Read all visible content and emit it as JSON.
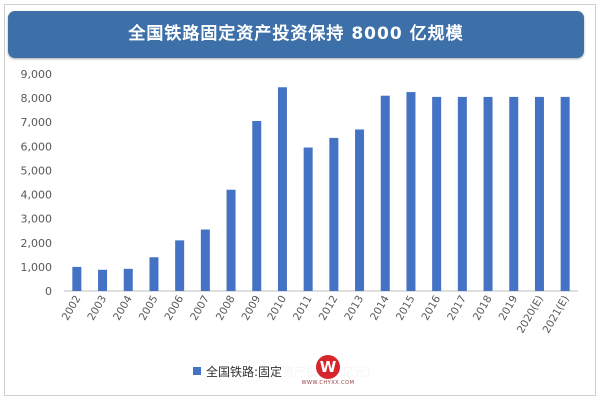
{
  "chart_data": {
    "type": "bar",
    "title": "全国铁路固定资产投资保持 8000 亿规模",
    "categories": [
      "2002",
      "2003",
      "2004",
      "2005",
      "2006",
      "2007",
      "2008",
      "2009",
      "2010",
      "2011",
      "2012",
      "2013",
      "2014",
      "2015",
      "2016",
      "2017",
      "2018",
      "2019",
      "2020(E)",
      "2021(E)"
    ],
    "series": [
      {
        "name": "全国铁路:固定资产投资（亿元）",
        "values": [
          1000,
          880,
          920,
          1400,
          2100,
          2550,
          4200,
          7050,
          8450,
          5950,
          6350,
          6700,
          8100,
          8250,
          8050,
          8050,
          8050,
          8050,
          8050,
          8050
        ]
      }
    ],
    "y_ticks": [
      "0",
      "1,000",
      "2,000",
      "3,000",
      "4,000",
      "5,000",
      "6,000",
      "7,000",
      "8,000",
      "9,000"
    ],
    "ylim": [
      0,
      9000
    ],
    "xlabel": "",
    "ylabel": "",
    "grid": false,
    "legend_position": "bottom",
    "bar_color": "#4472c4"
  },
  "legend_text": "全国铁路:固定资产投资（亿元）",
  "watermark": {
    "letter": "W",
    "lettering": "WWW.CHYXX.COM"
  }
}
